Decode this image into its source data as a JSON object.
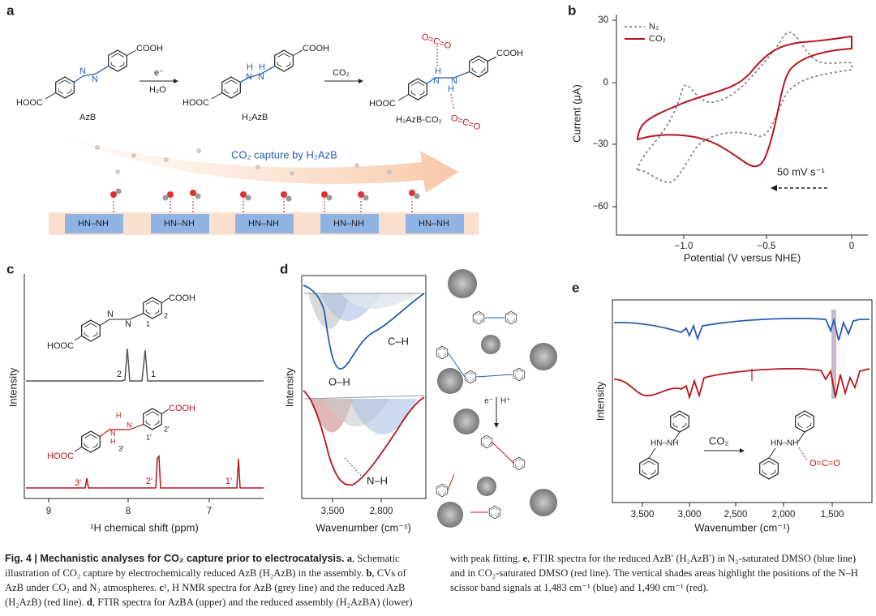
{
  "panel_a": {
    "letter": "a",
    "cooh_1": "COOH",
    "hooc_1": "HOOC",
    "n_1": "N",
    "n_2": "N",
    "name_1": "AzB",
    "arrow_1_top": "e⁻",
    "arrow_1_bottom": "H₂O",
    "cooh_2": "COOH",
    "hooc_2": "HOOC",
    "hn_1": "N",
    "hn_2": "N",
    "h_1": "H",
    "h_2": "H",
    "name_2": "H₂AzB",
    "arrow_2_top": "CO₂",
    "cooh_3": "COOH",
    "hooc_3": "HOOC",
    "hn_3": "N",
    "hn_4": "N",
    "h_3": "H",
    "h_4": "H",
    "oco_1": "O=C=O",
    "oco_2": "O=C=O",
    "name_3": "H₂AzB-CO₂",
    "capture": "CO₂ capture by H₂AzB",
    "sites": [
      "HN–NH",
      "HN–NH",
      "HN–NH",
      "HN–NH",
      "HN–NH"
    ]
  },
  "panel_b": {
    "letter": "b",
    "y_label": "Current (μA)",
    "x_label": "Potential (V versus NHE)",
    "yticks": [
      "30",
      "0",
      "−30",
      "−60"
    ],
    "xticks": [
      "−1.0",
      "−0.5",
      "0"
    ],
    "legend": [
      "N₂",
      "CO₂"
    ],
    "scan_rate": "50 mV s⁻¹"
  },
  "panel_c": {
    "letter": "c",
    "y_label": "Intensity",
    "x_label": "¹H chemical shift (ppm)",
    "xticks": [
      "9",
      "8",
      "7"
    ],
    "top_molecule": {
      "cooh": "COOH",
      "hooc": "HOOC",
      "n_1": "N",
      "n_2": "N",
      "pos_1": "1",
      "pos_2": "2"
    },
    "top_peaks": [
      "2",
      "1"
    ],
    "bottom_molecule": {
      "cooh": "COOH",
      "hooc": "HOOC",
      "n_1": "N",
      "n_2": "N",
      "h_1": "H",
      "h_2": "H",
      "pos_1": "1′",
      "pos_2": "2′",
      "pos_3": "3′"
    },
    "bottom_peaks": [
      "3′",
      "2′",
      "1′"
    ]
  },
  "panel_d": {
    "letter": "d",
    "y_label": "Intensity",
    "x_label": "Wavenumber (cm⁻¹)",
    "xticks": [
      "3,500",
      "2,800"
    ],
    "bands": [
      "C–H",
      "O–H",
      "N–H"
    ],
    "arrow_left": "e⁻",
    "arrow_right": "H⁺"
  },
  "panel_e": {
    "letter": "e",
    "y_label": "Intensity",
    "x_label": "Wavenumber (cm⁻¹)",
    "xticks": [
      "3,500",
      "3,000",
      "2,500",
      "2,000",
      "1,500"
    ],
    "reactant": "HN–NH",
    "reagent": "CO₂",
    "product": "HN–NH",
    "product_co2": "O=C=O"
  },
  "caption": {
    "title": "Fig. 4 | Mechanistic analyses for CO₂ capture prior to electrocatalysis.",
    "parts": [
      {
        "key": "a",
        "text": ", Schematic illustration of CO₂ capture by electrochemically reduced AzB (H₂AzB) in the assembly. "
      },
      {
        "key": "b",
        "text": ", CVs of AzB under CO₂ and N₂ atmospheres. "
      },
      {
        "key": "c",
        "text": "¹, H NMR spectra for AzB (grey line) and the reduced AzB (H₂AzB) (red line). "
      },
      {
        "key": "d",
        "text": ", FTIR spectra for AzBA (upper) and the reduced assembly (H₂AzBA) (lower) with peak fitting. "
      },
      {
        "key": "e",
        "text": ", FTIR spectra for the reduced AzB′ (H₂AzB′) in N₂-saturated DMSO (blue line) and in CO₂-saturated DMSO (red line). The vertical shades areas highlight the positions of the N–H scissor band signals at 1,483 cm⁻¹ (blue) and 1,490 cm⁻¹ (red)."
      }
    ]
  }
}
